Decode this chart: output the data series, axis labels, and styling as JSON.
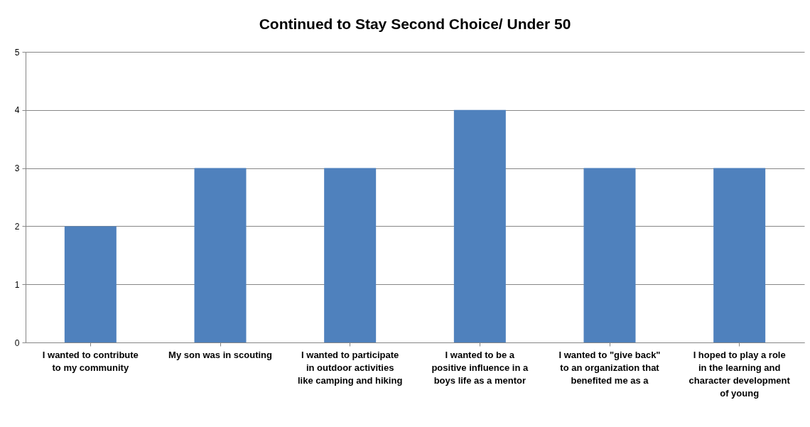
{
  "chart_data": {
    "type": "bar",
    "title": "Continued to Stay Second Choice/ Under 50",
    "categories": [
      "I wanted to contribute to my community",
      "My son was in scouting",
      "I wanted to participate in outdoor activities like camping and hiking",
      "I wanted to be a positive influence in a boys life as a mentor",
      "I wanted to \"give back\" to an organization that benefited me as a",
      "I hoped to play a role in the learning and character development of young"
    ],
    "values": [
      2,
      3,
      3,
      4,
      3,
      3
    ],
    "color": "#4f81bd",
    "ylim": [
      0,
      5
    ],
    "yticks": [
      0,
      1,
      2,
      3,
      4,
      5
    ],
    "grid": "y"
  }
}
